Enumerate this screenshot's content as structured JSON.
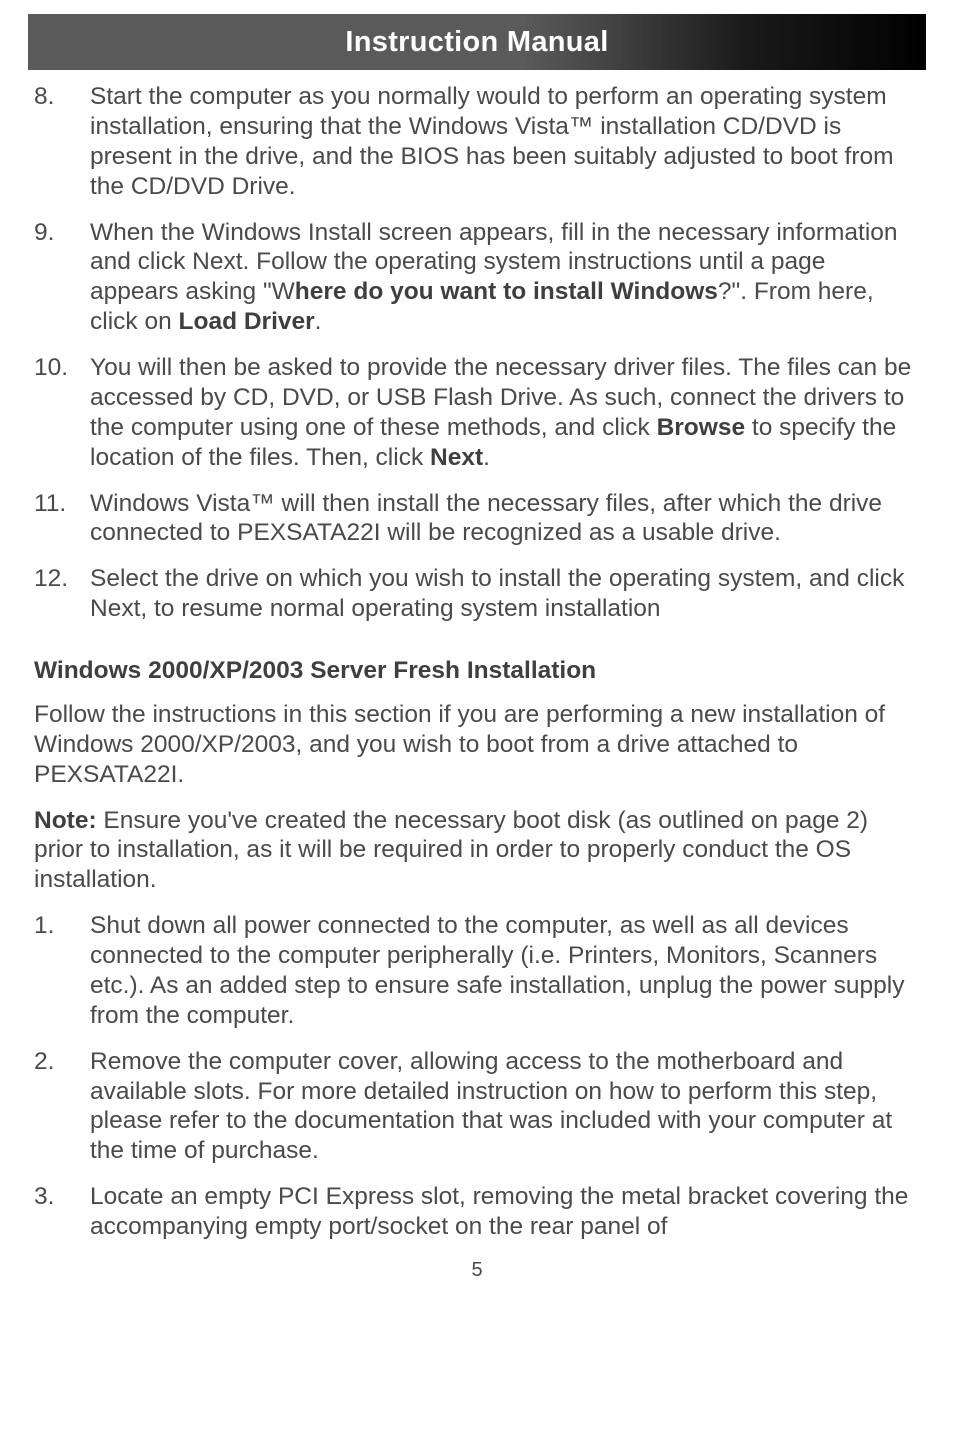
{
  "header": {
    "title": "Instruction Manual"
  },
  "list1": [
    {
      "n": "8.",
      "t": "Start the computer as you normally would to perform an operating system installation, ensuring that the Windows Vista™ installation CD/DVD is present in the drive, and the BIOS has been suitably adjusted to boot from the CD/DVD Drive."
    },
    {
      "n": "9.",
      "pre": "When the Windows Install screen appears, fill in the necessary information and click Next. Follow the operating system instructions until a page appears asking \"W",
      "b1": "here do you want to install Windows",
      "mid1": "?\". From here, click on ",
      "b2": "Load Driver",
      "post": "."
    },
    {
      "n": "10.",
      "pre": "You will then be asked to provide the necessary driver files. The files can be accessed by CD, DVD, or USB Flash Drive. As such, connect the drivers to the computer using one of these methods, and click ",
      "b1": "Browse",
      "mid1": " to specify the location of the files. Then, click ",
      "b2": "Next",
      "post": "."
    },
    {
      "n": "11.",
      "t": "Windows Vista™ will then install the necessary files, after which the drive connected to PEXSATA22I will be recognized as a usable drive."
    },
    {
      "n": "12.",
      "t": "Select the drive on which you wish to install the operating system, and click Next, to resume normal operating system installation"
    }
  ],
  "heading2": "Windows 2000/XP/2003 Server Fresh Installation",
  "para1": "Follow the instructions in this section if you are performing a new installation of Windows 2000/XP/2003, and you wish to boot from a drive attached to PEXSATA22I.",
  "note_label": "Note:",
  "note_text": " Ensure you've created the necessary boot disk (as outlined on page 2) prior to installation, as it will be required in order to properly conduct the OS installation.",
  "list2": [
    {
      "n": "1.",
      "t": "Shut down all power connected to the computer, as well as all devices connected to the computer peripherally (i.e. Printers, Monitors, Scanners etc.). As an added step to ensure safe installation, unplug the power supply from the computer."
    },
    {
      "n": "2.",
      "t": "Remove the computer cover, allowing access to the motherboard and available slots. For more detailed instruction on how to perform this step, please refer to the documentation that was included with your computer at the time of purchase."
    },
    {
      "n": "3.",
      "t": "Locate an empty PCI Express slot, removing the metal bracket covering the accompanying empty port/socket on the rear panel of"
    }
  ],
  "page_number": "5"
}
